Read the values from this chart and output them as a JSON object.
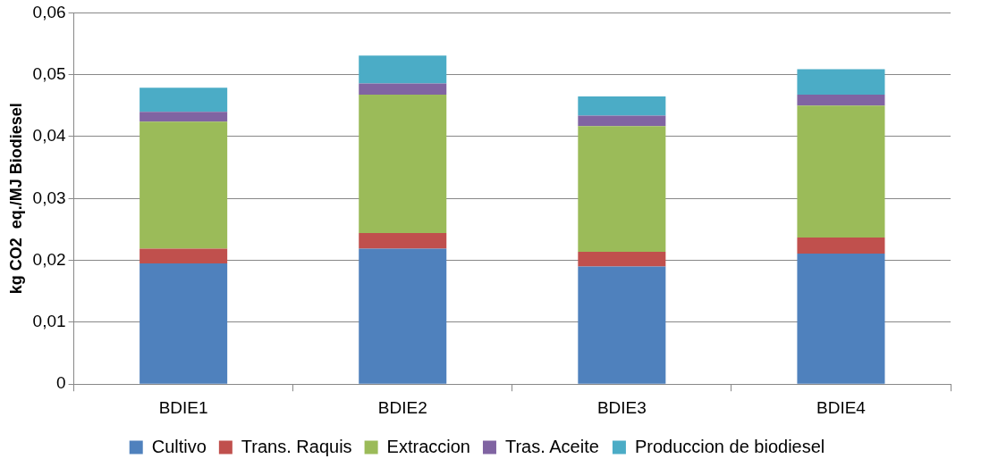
{
  "chart_data": {
    "type": "bar",
    "stacked": true,
    "ylabel": "kg CO2  eq./MJ Biodiesel",
    "categories": [
      "BDIE1",
      "BDIE2",
      "BDIE3",
      "BDIE4"
    ],
    "series": [
      {
        "name": "Cultivo",
        "color": "#4f81bd",
        "values": [
          0.0195,
          0.0219,
          0.019,
          0.0211
        ]
      },
      {
        "name": "Trans. Raquis",
        "color": "#c0504d",
        "values": [
          0.0024,
          0.0025,
          0.0024,
          0.0026
        ]
      },
      {
        "name": "Extraccion",
        "color": "#9bbb59",
        "values": [
          0.0205,
          0.0224,
          0.0203,
          0.0213
        ]
      },
      {
        "name": "Tras. Aceite",
        "color": "#8064a2",
        "values": [
          0.0016,
          0.0018,
          0.0017,
          0.0018
        ]
      },
      {
        "name": "Produccion de biodiesel",
        "color": "#4bacc6",
        "values": [
          0.0039,
          0.0045,
          0.0031,
          0.0041
        ]
      }
    ],
    "ylim": [
      0,
      0.06
    ],
    "yticks": [
      0,
      {
        "value": 0.01,
        "label": "0,01"
      },
      {
        "value": 0.02,
        "label": "0,02"
      },
      {
        "value": 0.03,
        "label": "0,03"
      },
      {
        "value": 0.04,
        "label": "0,04"
      },
      {
        "value": 0.05,
        "label": "0,05"
      },
      {
        "value": 0.06,
        "label": "0,06"
      }
    ],
    "grid": "y",
    "legend": "bottom"
  }
}
